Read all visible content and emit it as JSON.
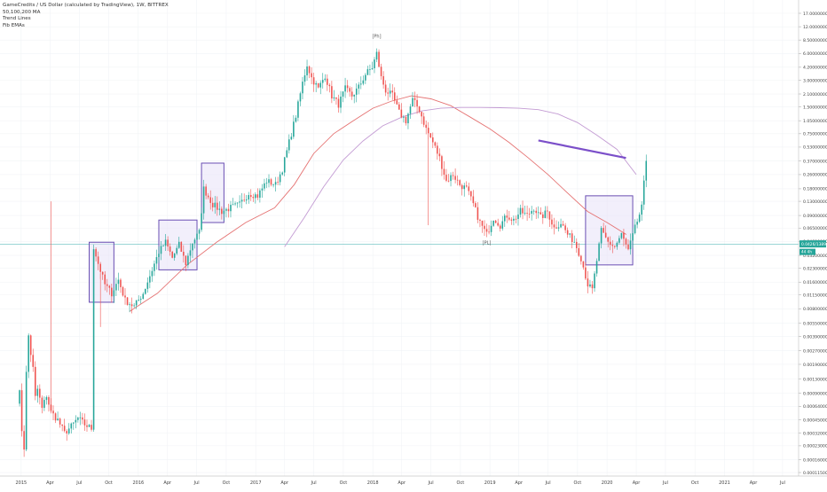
{
  "legend": {
    "title": "GameCredits / US Dollar (calculated by TradingView), 1W, BITTREX",
    "line2": "50,100,200 MA",
    "line3": "Trend Lines",
    "line4": "Fib EMAs"
  },
  "colors": {
    "up": "#26a69a",
    "down": "#ef5350",
    "ma_short": "#e57373",
    "ma_long": "#c39bd3",
    "trendline": "#7b4fc9",
    "box_border": "#6a4fb3",
    "box_fill": "#e8e1f7",
    "hline": "#79c8c8",
    "price_badge": "#26a69a"
  },
  "price_badge": {
    "value": "0.0426/1389",
    "sub": "44 4h"
  },
  "chart_data": {
    "type": "candlestick",
    "y_scale": "log",
    "ylim": [
      0.000105,
      24.0
    ],
    "y_ticks": [
      "17.00000000",
      "12.00000000",
      "8.50000000",
      "6.00000000",
      "4.20000000",
      "3.00000000",
      "2.10000000",
      "1.50000000",
      "1.05000000",
      "0.75000000",
      "0.53000000",
      "0.37000000",
      "0.26000000",
      "0.18000000",
      "0.13000000",
      "0.09000000",
      "0.06500000",
      "0.04600000",
      "0.03200000",
      "0.02300000",
      "0.01600000",
      "0.01150000",
      "0.00800000",
      "0.00550000",
      "0.00390000",
      "0.00270000",
      "0.00190000",
      "0.00130000",
      "0.00090000",
      "0.00064000",
      "0.00045000",
      "0.00032000",
      "0.00023000",
      "0.00016000",
      "0.00011500",
      "0.00008000"
    ],
    "x_ticks": [
      {
        "label": "2015",
        "date": "2015-01-01"
      },
      {
        "label": "Apr",
        "date": "2015-04-01"
      },
      {
        "label": "Jul",
        "date": "2015-07-01"
      },
      {
        "label": "Oct",
        "date": "2015-10-01"
      },
      {
        "label": "2016",
        "date": "2016-01-01"
      },
      {
        "label": "Apr",
        "date": "2016-04-01"
      },
      {
        "label": "Jul",
        "date": "2016-07-01"
      },
      {
        "label": "Oct",
        "date": "2016-10-01"
      },
      {
        "label": "2017",
        "date": "2017-01-01"
      },
      {
        "label": "Apr",
        "date": "2017-04-01"
      },
      {
        "label": "Jul",
        "date": "2017-07-01"
      },
      {
        "label": "Oct",
        "date": "2017-10-01"
      },
      {
        "label": "2018",
        "date": "2018-01-01"
      },
      {
        "label": "Apr",
        "date": "2018-04-01"
      },
      {
        "label": "Jul",
        "date": "2018-07-01"
      },
      {
        "label": "Oct",
        "date": "2018-10-01"
      },
      {
        "label": "2019",
        "date": "2019-01-01"
      },
      {
        "label": "Apr",
        "date": "2019-04-01"
      },
      {
        "label": "Jul",
        "date": "2019-07-01"
      },
      {
        "label": "Oct",
        "date": "2019-10-01"
      },
      {
        "label": "2020",
        "date": "2020-01-01"
      },
      {
        "label": "Apr",
        "date": "2020-04-01"
      },
      {
        "label": "Jul",
        "date": "2020-07-01"
      },
      {
        "label": "Oct",
        "date": "2020-10-01"
      },
      {
        "label": "2021",
        "date": "2021-01-01"
      },
      {
        "label": "Apr",
        "date": "2021-04-01"
      },
      {
        "label": "Jul",
        "date": "2021-07-01"
      }
    ],
    "anchors": [
      [
        "2014-12-20",
        0.00075
      ],
      [
        "2014-12-27",
        0.0009
      ],
      [
        "2015-01-03",
        0.00035
      ],
      [
        "2015-01-10",
        0.00022
      ],
      [
        "2015-01-17",
        0.0015
      ],
      [
        "2015-01-24",
        0.004
      ],
      [
        "2015-01-31",
        0.0025
      ],
      [
        "2015-02-07",
        0.0017
      ],
      [
        "2015-02-14",
        0.0008
      ],
      [
        "2015-02-21",
        0.001
      ],
      [
        "2015-03-07",
        0.0006
      ],
      [
        "2015-03-21",
        0.00085
      ],
      [
        "2015-04-04",
        0.00055
      ],
      [
        "2015-04-25",
        0.00045
      ],
      [
        "2015-05-16",
        0.00032
      ],
      [
        "2015-06-06",
        0.00038
      ],
      [
        "2015-06-27",
        0.00047
      ],
      [
        "2015-07-18",
        0.0004
      ],
      [
        "2015-08-08",
        0.00036
      ],
      [
        "2015-08-15",
        0.04
      ],
      [
        "2015-08-29",
        0.026
      ],
      [
        "2015-09-19",
        0.015
      ],
      [
        "2015-10-10",
        0.012
      ],
      [
        "2015-10-31",
        0.017
      ],
      [
        "2015-11-21",
        0.01
      ],
      [
        "2015-12-19",
        0.0085
      ],
      [
        "2016-01-16",
        0.012
      ],
      [
        "2016-02-13",
        0.022
      ],
      [
        "2016-03-05",
        0.035
      ],
      [
        "2016-03-26",
        0.045
      ],
      [
        "2016-04-16",
        0.03
      ],
      [
        "2016-05-07",
        0.042
      ],
      [
        "2016-05-28",
        0.026
      ],
      [
        "2016-06-18",
        0.045
      ],
      [
        "2016-07-09",
        0.058
      ],
      [
        "2016-07-23",
        0.18
      ],
      [
        "2016-08-20",
        0.12
      ],
      [
        "2016-09-17",
        0.1
      ],
      [
        "2016-10-15",
        0.11
      ],
      [
        "2016-11-12",
        0.12
      ],
      [
        "2016-12-10",
        0.16
      ],
      [
        "2017-01-07",
        0.15
      ],
      [
        "2017-02-04",
        0.22
      ],
      [
        "2017-03-04",
        0.2
      ],
      [
        "2017-03-25",
        0.3
      ],
      [
        "2017-04-15",
        0.6
      ],
      [
        "2017-05-06",
        1.2
      ],
      [
        "2017-05-27",
        2.8
      ],
      [
        "2017-06-10",
        4.5
      ],
      [
        "2017-06-24",
        3.2
      ],
      [
        "2017-07-15",
        2.4
      ],
      [
        "2017-08-05",
        3.4
      ],
      [
        "2017-08-26",
        2.0
      ],
      [
        "2017-09-16",
        1.6
      ],
      [
        "2017-10-07",
        2.4
      ],
      [
        "2017-10-28",
        2.0
      ],
      [
        "2017-11-18",
        2.5
      ],
      [
        "2017-12-09",
        3.5
      ],
      [
        "2017-12-30",
        4.2
      ],
      [
        "2018-01-13",
        6.0
      ],
      [
        "2018-01-27",
        3.2
      ],
      [
        "2018-02-10",
        2.3
      ],
      [
        "2018-03-03",
        2.0
      ],
      [
        "2018-03-24",
        1.3
      ],
      [
        "2018-04-14",
        1.05
      ],
      [
        "2018-05-05",
        1.8
      ],
      [
        "2018-05-26",
        1.4
      ],
      [
        "2018-06-16",
        0.85
      ],
      [
        "2018-07-07",
        0.6
      ],
      [
        "2018-07-28",
        0.4
      ],
      [
        "2018-08-18",
        0.22
      ],
      [
        "2018-09-08",
        0.26
      ],
      [
        "2018-09-29",
        0.2
      ],
      [
        "2018-10-20",
        0.18
      ],
      [
        "2018-11-10",
        0.12
      ],
      [
        "2018-12-01",
        0.075
      ],
      [
        "2018-12-22",
        0.055
      ],
      [
        "2019-01-12",
        0.085
      ],
      [
        "2019-02-02",
        0.07
      ],
      [
        "2019-02-23",
        0.09
      ],
      [
        "2019-03-16",
        0.08
      ],
      [
        "2019-04-06",
        0.1
      ],
      [
        "2019-04-27",
        0.09
      ],
      [
        "2019-05-18",
        0.11
      ],
      [
        "2019-06-08",
        0.085
      ],
      [
        "2019-06-29",
        0.1
      ],
      [
        "2019-07-20",
        0.065
      ],
      [
        "2019-08-10",
        0.075
      ],
      [
        "2019-08-31",
        0.055
      ],
      [
        "2019-09-21",
        0.046
      ],
      [
        "2019-10-12",
        0.03
      ],
      [
        "2019-11-02",
        0.015
      ],
      [
        "2019-11-16",
        0.013
      ],
      [
        "2019-11-30",
        0.028
      ],
      [
        "2019-12-14",
        0.06
      ],
      [
        "2020-01-04",
        0.045
      ],
      [
        "2020-01-25",
        0.04
      ],
      [
        "2020-02-15",
        0.055
      ],
      [
        "2020-03-07",
        0.036
      ],
      [
        "2020-03-28",
        0.065
      ],
      [
        "2020-04-18",
        0.11
      ],
      [
        "2020-05-02",
        0.38
      ]
    ],
    "ma_short": [
      [
        "2015-12-05",
        0.0075
      ],
      [
        "2016-03-01",
        0.012
      ],
      [
        "2016-06-01",
        0.025
      ],
      [
        "2016-09-01",
        0.045
      ],
      [
        "2016-12-01",
        0.075
      ],
      [
        "2017-03-01",
        0.11
      ],
      [
        "2017-05-01",
        0.2
      ],
      [
        "2017-07-01",
        0.45
      ],
      [
        "2017-09-01",
        0.75
      ],
      [
        "2017-11-01",
        1.05
      ],
      [
        "2018-01-01",
        1.45
      ],
      [
        "2018-03-01",
        1.75
      ],
      [
        "2018-05-01",
        2.0
      ],
      [
        "2018-07-01",
        1.85
      ],
      [
        "2018-09-01",
        1.55
      ],
      [
        "2018-11-01",
        1.15
      ],
      [
        "2019-01-01",
        0.85
      ],
      [
        "2019-03-01",
        0.6
      ],
      [
        "2019-05-01",
        0.4
      ],
      [
        "2019-07-01",
        0.26
      ],
      [
        "2019-09-01",
        0.16
      ],
      [
        "2019-11-01",
        0.1
      ],
      [
        "2020-01-01",
        0.075
      ],
      [
        "2020-03-01",
        0.055
      ]
    ],
    "ma_long": [
      [
        "2017-04-01",
        0.04
      ],
      [
        "2017-06-01",
        0.085
      ],
      [
        "2017-08-01",
        0.19
      ],
      [
        "2017-10-01",
        0.38
      ],
      [
        "2017-12-01",
        0.62
      ],
      [
        "2018-02-01",
        0.92
      ],
      [
        "2018-04-01",
        1.15
      ],
      [
        "2018-06-01",
        1.35
      ],
      [
        "2018-08-01",
        1.45
      ],
      [
        "2018-10-01",
        1.48
      ],
      [
        "2018-12-01",
        1.48
      ],
      [
        "2019-02-01",
        1.47
      ],
      [
        "2019-04-01",
        1.45
      ],
      [
        "2019-06-01",
        1.4
      ],
      [
        "2019-08-01",
        1.25
      ],
      [
        "2019-10-01",
        1.0
      ],
      [
        "2019-12-01",
        0.72
      ],
      [
        "2020-02-01",
        0.5
      ],
      [
        "2020-04-01",
        0.26
      ]
    ],
    "spikes": [
      {
        "date": "2015-04-04",
        "low": 0.00055,
        "high": 0.13
      },
      {
        "date": "2015-09-05",
        "low": 0.005,
        "high": 0.02
      },
      {
        "date": "2018-06-23",
        "low": 0.07,
        "high": 0.8
      }
    ],
    "boxes": [
      {
        "from": "2015-08-01",
        "to": "2015-10-17",
        "top": 0.045,
        "bottom": 0.0095
      },
      {
        "from": "2016-03-05",
        "to": "2016-07-02",
        "top": 0.08,
        "bottom": 0.022
      },
      {
        "from": "2016-07-16",
        "to": "2016-09-24",
        "top": 0.35,
        "bottom": 0.075
      },
      {
        "from": "2019-10-26",
        "to": "2020-03-21",
        "top": 0.15,
        "bottom": 0.025
      }
    ],
    "trendline": {
      "from": [
        "2019-06-01",
        0.63
      ],
      "to": [
        "2020-02-29",
        0.4
      ]
    },
    "hline": 0.0426,
    "annotations": [
      {
        "label": "[Ph]",
        "date": "2018-01-13",
        "price": 9.0
      },
      {
        "label": "[PL]",
        "date": "2018-12-22",
        "price": 0.0425
      }
    ]
  }
}
